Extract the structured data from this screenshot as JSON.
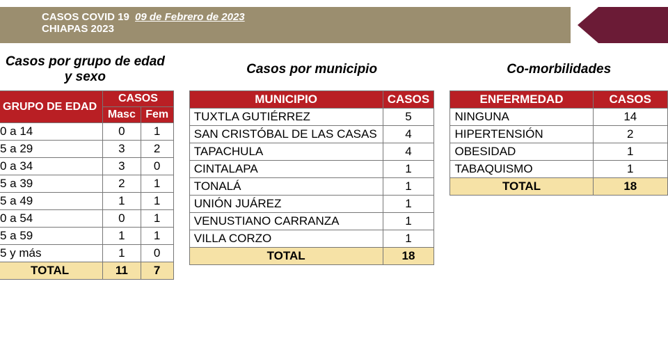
{
  "header": {
    "title_prefix": "CASOS COVID 19",
    "date": "09 de Febrero de 2023",
    "subtitle": "CHIAPAS 2023"
  },
  "colors": {
    "header_bar": "#9b8e6f",
    "corner": "#6b1b36",
    "table_header": "#b91f24",
    "total_row": "#f6e2a6",
    "border": "#777777",
    "text": "#000000",
    "header_text": "#ffffff"
  },
  "age_sex": {
    "title": "Casos por grupo de edad y sexo",
    "header_group": "GRUPO DE EDAD",
    "header_cases": "CASOS",
    "header_masc": "Masc",
    "header_fem": "Fem",
    "rows": [
      {
        "label": "0 a 14",
        "masc": "0",
        "fem": "1"
      },
      {
        "label": "5 a 29",
        "masc": "3",
        "fem": "2"
      },
      {
        "label": "0 a 34",
        "masc": "3",
        "fem": "0"
      },
      {
        "label": "5 a 39",
        "masc": "2",
        "fem": "1"
      },
      {
        "label": "5 a 49",
        "masc": "1",
        "fem": "1"
      },
      {
        "label": "0 a 54",
        "masc": "0",
        "fem": "1"
      },
      {
        "label": "5 a 59",
        "masc": "1",
        "fem": "1"
      },
      {
        "label": "5 y más",
        "masc": "1",
        "fem": "0"
      }
    ],
    "total_label": "TOTAL",
    "total_masc": "11",
    "total_fem": "7"
  },
  "municipio": {
    "title": "Casos por municipio",
    "header_muni": "MUNICIPIO",
    "header_cases": "CASOS",
    "rows": [
      {
        "label": "TUXTLA GUTIÉRREZ",
        "cases": "5"
      },
      {
        "label": "SAN CRISTÓBAL DE LAS CASAS",
        "cases": "4"
      },
      {
        "label": "TAPACHULA",
        "cases": "4"
      },
      {
        "label": "CINTALAPA",
        "cases": "1"
      },
      {
        "label": "TONALÁ",
        "cases": "1"
      },
      {
        "label": "UNIÓN JUÁREZ",
        "cases": "1"
      },
      {
        "label": "VENUSTIANO CARRANZA",
        "cases": "1"
      },
      {
        "label": "VILLA CORZO",
        "cases": "1"
      }
    ],
    "total_label": "TOTAL",
    "total_cases": "18"
  },
  "comorb": {
    "title": "Co-morbilidades",
    "header_disease": "ENFERMEDAD",
    "header_cases": "CASOS",
    "rows": [
      {
        "label": "NINGUNA",
        "cases": "14"
      },
      {
        "label": "HIPERTENSIÓN",
        "cases": "2"
      },
      {
        "label": "OBESIDAD",
        "cases": "1"
      },
      {
        "label": "TABAQUISMO",
        "cases": "1"
      }
    ],
    "total_label": "TOTAL",
    "total_cases": "18"
  }
}
